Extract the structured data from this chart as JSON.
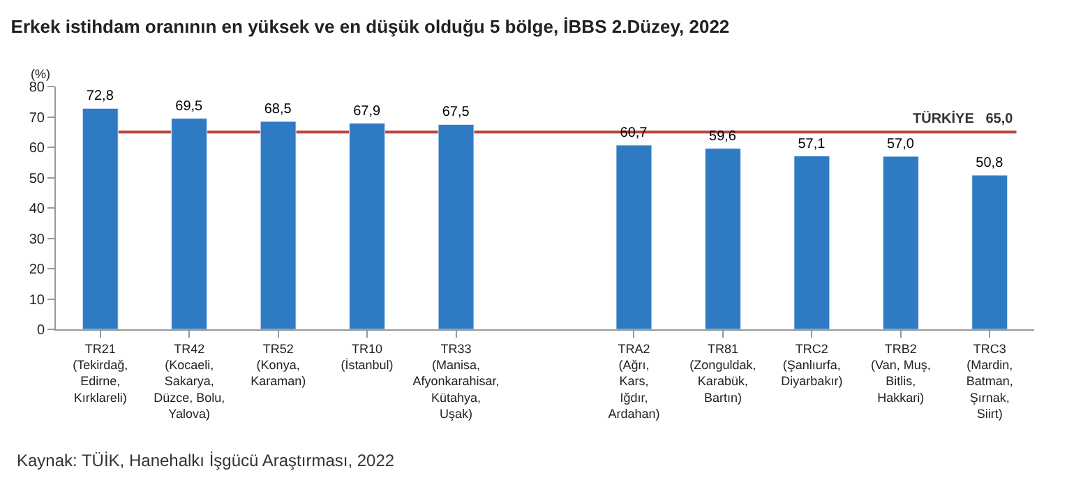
{
  "chart_data": {
    "type": "bar",
    "title": "Erkek istihdam oranının en yüksek ve en düşük olduğu 5 bölge, İBBS 2.Düzey, 2022",
    "ylabel": "(%)",
    "categories": [
      "TR21\n(Tekirdağ,\nEdirne,\nKırklareli)",
      "TR42\n(Kocaeli,\nSakarya,\nDüzce, Bolu,\nYalova)",
      "TR52\n(Konya,\nKaraman)",
      "TR10\n(İstanbul)",
      "TR33\n(Manisa,\nAfyonkarahisar,\nKütahya,\nUşak)",
      null,
      "TRA2\n(Ağrı,\nKars,\nIğdır,\nArdahan)",
      "TR81\n(Zonguldak,\nKarabük,\nBartın)",
      "TRC2\n(Şanlıurfa,\nDiyarbakır)",
      "TRB2\n(Van, Muş,\nBitlis,\nHakkari)",
      "TRC3\n(Mardin,\nBatman,\nŞırnak,\nSiirt)"
    ],
    "values": [
      72.8,
      69.5,
      68.5,
      67.9,
      67.5,
      null,
      60.7,
      59.6,
      57.1,
      57.0,
      50.8
    ],
    "value_labels": [
      "72,8",
      "69,5",
      "68,5",
      "67,9",
      "67,5",
      null,
      "60,7",
      "59,6",
      "57,1",
      "57,0",
      "50,8"
    ],
    "color": "#2e7bc4",
    "ylim": [
      0,
      80
    ],
    "yticks": [
      0,
      10,
      20,
      30,
      40,
      50,
      60,
      70,
      80
    ],
    "ref_lines": [
      {
        "axis": "y",
        "value": 65.0,
        "label": "TÜRKİYE   65,0",
        "color": "#b5443c"
      }
    ],
    "annotations": [
      "Kaynak: TÜİK, Hanehalkı İşgücü Araştırması, 2022"
    ],
    "legend": false
  }
}
